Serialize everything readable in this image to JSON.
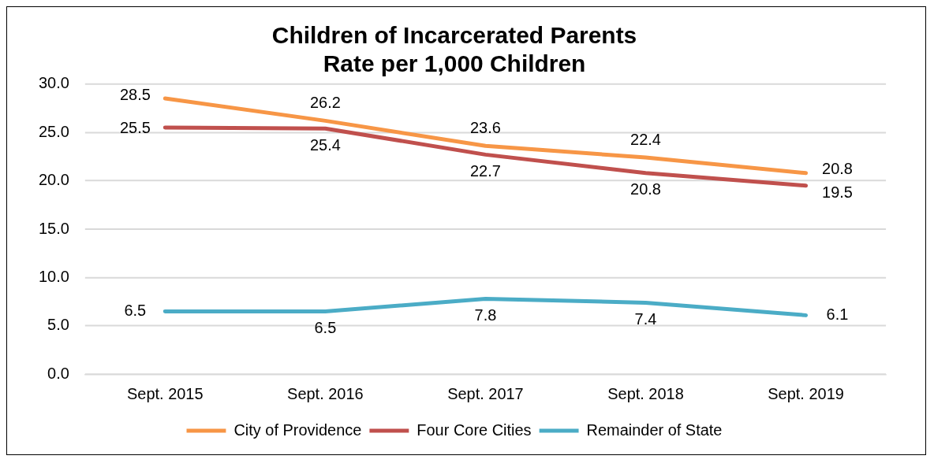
{
  "chart_data": {
    "type": "line",
    "title": [
      "Children of Incarcerated Parents",
      "Rate per 1,000 Children"
    ],
    "categories": [
      "Sept. 2015",
      "Sept. 2016",
      "Sept. 2017",
      "Sept. 2018",
      "Sept. 2019"
    ],
    "series": [
      {
        "name": "City of Providence",
        "color": "#f79646",
        "values": [
          28.5,
          26.2,
          23.6,
          22.4,
          20.8
        ]
      },
      {
        "name": "Four Core Cities",
        "color": "#c0504d",
        "values": [
          25.5,
          25.4,
          22.7,
          20.8,
          19.5
        ]
      },
      {
        "name": "Remainder of State",
        "color": "#4bacc6",
        "values": [
          6.5,
          6.5,
          7.8,
          7.4,
          6.1
        ]
      }
    ],
    "ylim": [
      0,
      30
    ],
    "yticks": [
      {
        "value": 0,
        "label": "0.0"
      },
      {
        "value": 5,
        "label": "5.0"
      },
      {
        "value": 10,
        "label": "10.0"
      },
      {
        "value": 15,
        "label": "15.0"
      },
      {
        "value": 20,
        "label": "20.0"
      },
      {
        "value": 25,
        "label": "25.0"
      },
      {
        "value": 30,
        "label": "30.0"
      }
    ],
    "grid": "y",
    "legend": "bottom",
    "marker": "none",
    "line_style": "solid",
    "data_labels": true
  }
}
